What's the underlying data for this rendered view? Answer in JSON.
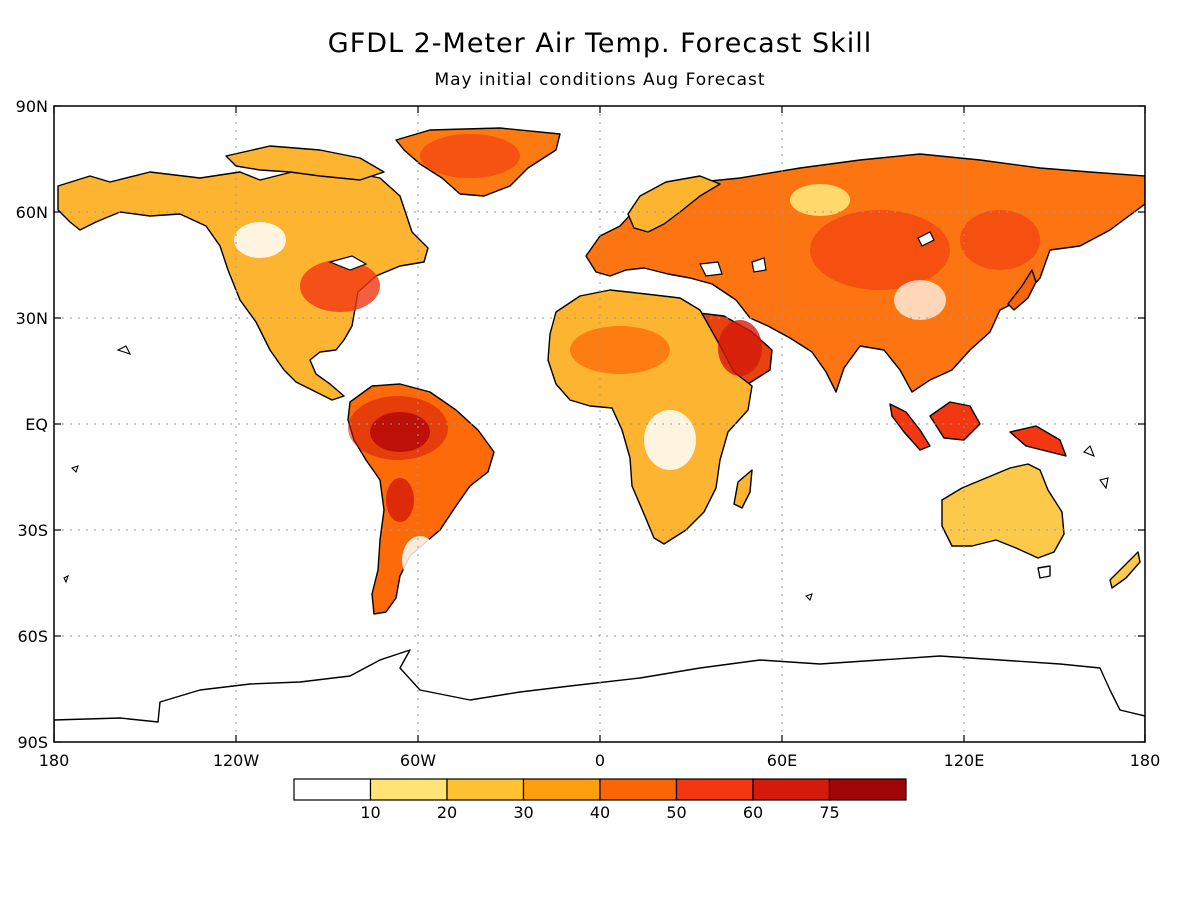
{
  "title": "GFDL 2-Meter Air Temp. Forecast Skill",
  "subtitle": "May initial conditions  Aug Forecast",
  "lat_labels": [
    "90N",
    "60N",
    "30N",
    "EQ",
    "30S",
    "60S",
    "90S"
  ],
  "lon_labels": [
    "180",
    "120W",
    "60W",
    "0",
    "60E",
    "120E",
    "180"
  ],
  "legend": {
    "thresholds": [
      "10",
      "20",
      "30",
      "40",
      "50",
      "60",
      "75"
    ],
    "colors": [
      "#ffffff",
      "#ffe475",
      "#fec232",
      "#fd9e0e",
      "#fc6505",
      "#f23711",
      "#d31a0b",
      "#a10606"
    ]
  },
  "colors": {
    "coastline": "#000000",
    "gridline": "#9a9a9a"
  }
}
